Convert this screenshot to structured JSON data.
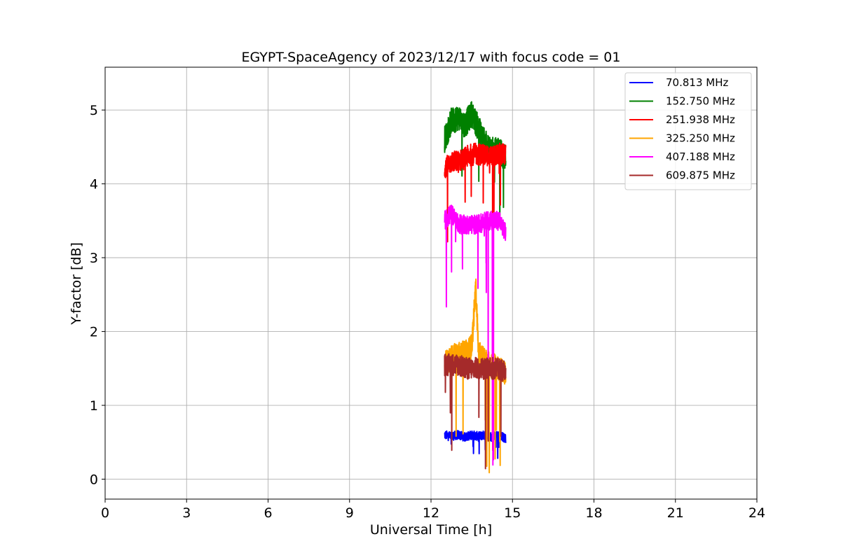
{
  "chart_data": {
    "type": "line",
    "title": "EGYPT-SpaceAgency of 2023/12/17 with focus code = 01",
    "xlabel": "Universal Time [h]",
    "ylabel": "Y-factor [dB]",
    "xlim": [
      0,
      24
    ],
    "ylim": [
      -0.27,
      5.58
    ],
    "xticks": [
      0,
      3,
      6,
      9,
      12,
      15,
      18,
      21,
      24
    ],
    "yticks": [
      0,
      1,
      2,
      3,
      4,
      5
    ],
    "grid": true,
    "legend_position": "top-right",
    "x_range_of_data": [
      12.5,
      14.75
    ],
    "series": [
      {
        "name": " 70.813 MHz",
        "color": "#0000ff",
        "points": [
          [
            12.5,
            0.6
          ],
          [
            12.75,
            0.58
          ],
          [
            13.0,
            0.6
          ],
          [
            13.25,
            0.57
          ],
          [
            13.5,
            0.6
          ],
          [
            13.75,
            0.58
          ],
          [
            14.0,
            0.6
          ],
          [
            14.25,
            0.57
          ],
          [
            14.5,
            0.6
          ],
          [
            14.75,
            0.55
          ]
        ]
      },
      {
        "name": "152.750 MHz",
        "color": "#008000",
        "points": [
          [
            12.5,
            4.6
          ],
          [
            12.75,
            4.85
          ],
          [
            13.0,
            4.9
          ],
          [
            13.25,
            4.8
          ],
          [
            13.5,
            4.95
          ],
          [
            13.75,
            4.75
          ],
          [
            14.0,
            4.55
          ],
          [
            14.25,
            4.45
          ],
          [
            14.5,
            4.45
          ],
          [
            14.75,
            4.35
          ]
        ]
      },
      {
        "name": "251.938 MHz",
        "color": "#ff0000",
        "points": [
          [
            12.5,
            4.2
          ],
          [
            12.75,
            4.3
          ],
          [
            13.0,
            4.3
          ],
          [
            13.25,
            4.35
          ],
          [
            13.5,
            4.4
          ],
          [
            13.75,
            4.4
          ],
          [
            14.0,
            4.4
          ],
          [
            14.25,
            4.35
          ],
          [
            14.5,
            4.4
          ],
          [
            14.75,
            4.4
          ]
        ]
      },
      {
        "name": "325.250 MHz",
        "color": "#ffa500",
        "points": [
          [
            12.5,
            1.55
          ],
          [
            12.75,
            1.65
          ],
          [
            13.0,
            1.7
          ],
          [
            13.25,
            1.7
          ],
          [
            13.5,
            1.8
          ],
          [
            13.65,
            2.6
          ],
          [
            13.75,
            1.7
          ],
          [
            14.0,
            1.6
          ],
          [
            14.25,
            1.55
          ],
          [
            14.5,
            1.5
          ],
          [
            14.75,
            1.45
          ]
        ]
      },
      {
        "name": "407.188 MHz",
        "color": "#ff00ff",
        "points": [
          [
            12.5,
            3.5
          ],
          [
            12.75,
            3.6
          ],
          [
            13.0,
            3.45
          ],
          [
            13.25,
            3.45
          ],
          [
            13.5,
            3.45
          ],
          [
            13.75,
            3.45
          ],
          [
            14.0,
            3.5
          ],
          [
            14.25,
            3.5
          ],
          [
            14.5,
            3.5
          ],
          [
            14.75,
            3.35
          ]
        ]
      },
      {
        "name": "609.875 MHz",
        "color": "#a52a2a",
        "points": [
          [
            12.5,
            1.55
          ],
          [
            12.75,
            1.55
          ],
          [
            13.0,
            1.55
          ],
          [
            13.25,
            1.5
          ],
          [
            13.5,
            1.5
          ],
          [
            13.75,
            1.5
          ],
          [
            14.0,
            1.5
          ],
          [
            14.25,
            1.5
          ],
          [
            14.5,
            1.5
          ],
          [
            14.75,
            1.45
          ]
        ]
      }
    ]
  }
}
